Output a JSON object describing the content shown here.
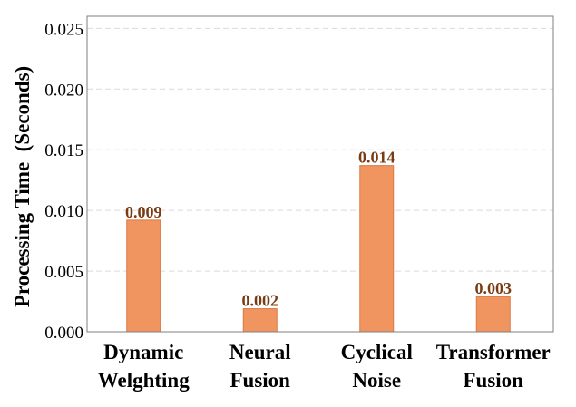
{
  "chart_data": {
    "type": "bar",
    "title": "",
    "xlabel": "",
    "ylabel": "Processing Time  (Seconds)",
    "ylim": [
      0,
      0.026
    ],
    "yticks": [
      0.0,
      0.005,
      0.01,
      0.015,
      0.02,
      0.025
    ],
    "ytick_labels": [
      "0.000",
      "0.005",
      "0.010",
      "0.015",
      "0.020",
      "0.025"
    ],
    "grid": "horizontal dashed",
    "categories": [
      [
        "Dynamic",
        "Welghting"
      ],
      [
        "Neural",
        "Fusion"
      ],
      [
        "Cyclical",
        "Noise"
      ],
      [
        "Transformer",
        "Fusion"
      ]
    ],
    "values": [
      0.0092,
      0.0019,
      0.0137,
      0.0029
    ],
    "value_labels": [
      "0.009",
      "0.002",
      "0.014",
      "0.003"
    ],
    "colors": {
      "bar": "#f0955f",
      "bar_edge": "#d97a45",
      "data_label": "#7a3a12",
      "grid": "#d9d9d9",
      "frame": "#7f7f7f"
    }
  }
}
